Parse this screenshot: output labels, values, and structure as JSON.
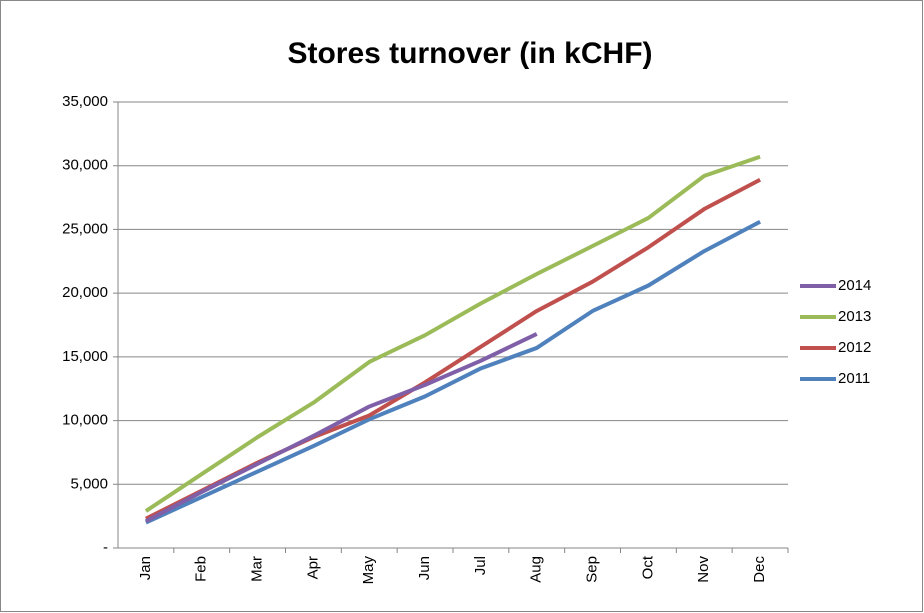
{
  "chart_data": {
    "type": "line",
    "title": "Stores turnover (in kCHF)",
    "categories": [
      "Jan",
      "Feb",
      "Mar",
      "Apr",
      "May",
      "Jun",
      "Jul",
      "Aug",
      "Sep",
      "Oct",
      "Nov",
      "Dec"
    ],
    "series": [
      {
        "name": "2014",
        "color": "#7f60a8",
        "values": [
          2100,
          4400,
          6600,
          8800,
          11100,
          12800,
          14700,
          16800,
          null,
          null,
          null,
          null
        ]
      },
      {
        "name": "2013",
        "color": "#9bbb59",
        "values": [
          2900,
          5800,
          8700,
          11400,
          14600,
          16700,
          19200,
          21500,
          23700,
          25900,
          29200,
          30700
        ]
      },
      {
        "name": "2012",
        "color": "#c0504d",
        "values": [
          2300,
          4500,
          6700,
          8700,
          10400,
          13000,
          15800,
          18600,
          20900,
          23600,
          26600,
          28900
        ]
      },
      {
        "name": "2011",
        "color": "#4f81bd",
        "values": [
          2000,
          4000,
          6000,
          8000,
          10100,
          11900,
          14100,
          15700,
          18600,
          20600,
          23300,
          25600
        ]
      }
    ],
    "ylim": [
      0,
      35000
    ],
    "yticks": [
      {
        "value": 0,
        "label": "-"
      },
      {
        "value": 5000,
        "label": "5,000"
      },
      {
        "value": 10000,
        "label": "10,000"
      },
      {
        "value": 15000,
        "label": "15,000"
      },
      {
        "value": 20000,
        "label": "20,000"
      },
      {
        "value": 25000,
        "label": "25,000"
      },
      {
        "value": 30000,
        "label": "30,000"
      },
      {
        "value": 35000,
        "label": "35,000"
      }
    ],
    "grid": true,
    "legend": "right"
  }
}
